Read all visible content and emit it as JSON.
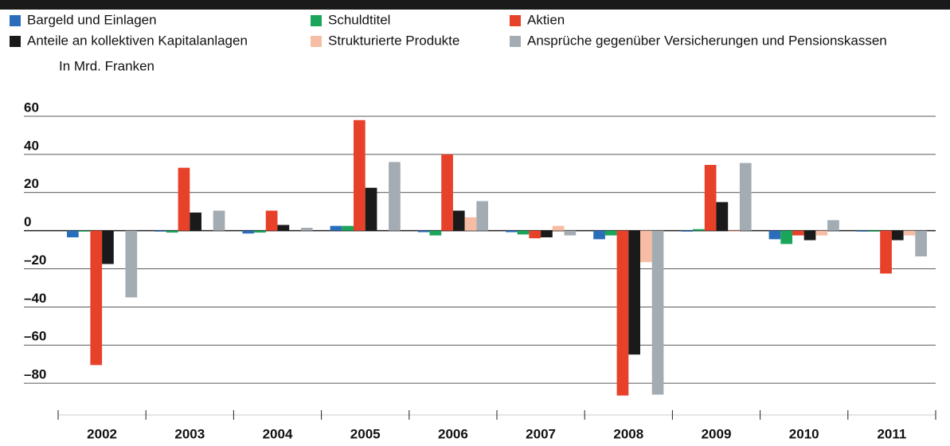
{
  "chart_data": {
    "type": "bar",
    "ylabel": "In Mrd. Franken",
    "categories": [
      "2002",
      "2003",
      "2004",
      "2005",
      "2006",
      "2007",
      "2008",
      "2009",
      "2010",
      "2011"
    ],
    "series": [
      {
        "name": "Bargeld und Einlagen",
        "color": "#2a6ebb",
        "values": [
          -3.5,
          -0.5,
          -1.5,
          2.5,
          -0.8,
          -0.8,
          -4.5,
          -0.5,
          -4.5,
          -0.5
        ]
      },
      {
        "name": "Schuldtitel",
        "color": "#1aa55a",
        "values": [
          -0.5,
          -1,
          -1,
          2.5,
          -2.5,
          -2,
          -2.5,
          0.8,
          -7,
          -0.5
        ]
      },
      {
        "name": "Aktien",
        "color": "#e8412a",
        "values": [
          -70.5,
          33,
          10.5,
          58,
          40,
          -4,
          -86.5,
          34.5,
          -2.5,
          -22.5
        ]
      },
      {
        "name": "Anteile an kollektiven Kapitalanlagen",
        "color": "#1a1a1a",
        "values": [
          -17.5,
          9.5,
          3,
          22.5,
          10.5,
          -3.5,
          -65,
          15,
          -5,
          -5
        ]
      },
      {
        "name": "Strukturierte Produkte",
        "color": "#f7bca4",
        "values": [
          null,
          null,
          null,
          null,
          7,
          2.5,
          -16.5,
          -0.5,
          -2.5,
          -2.5
        ]
      },
      {
        "name": "Ansprüche gegenüber Versicherungen und Pensionskassen",
        "color": "#a4acb3",
        "values": [
          -35,
          10.5,
          1.5,
          36,
          15.5,
          -2.5,
          -86,
          35.5,
          5.5,
          -13.5
        ]
      }
    ],
    "ylim": [
      -95,
      60
    ],
    "yticks": [
      60,
      40,
      20,
      0,
      {
        "value": -20,
        "label": "–20"
      },
      {
        "value": -40,
        "label": "–40"
      },
      {
        "value": -60,
        "label": "–60"
      },
      {
        "value": -80,
        "label": "–80"
      }
    ],
    "grid": true
  }
}
